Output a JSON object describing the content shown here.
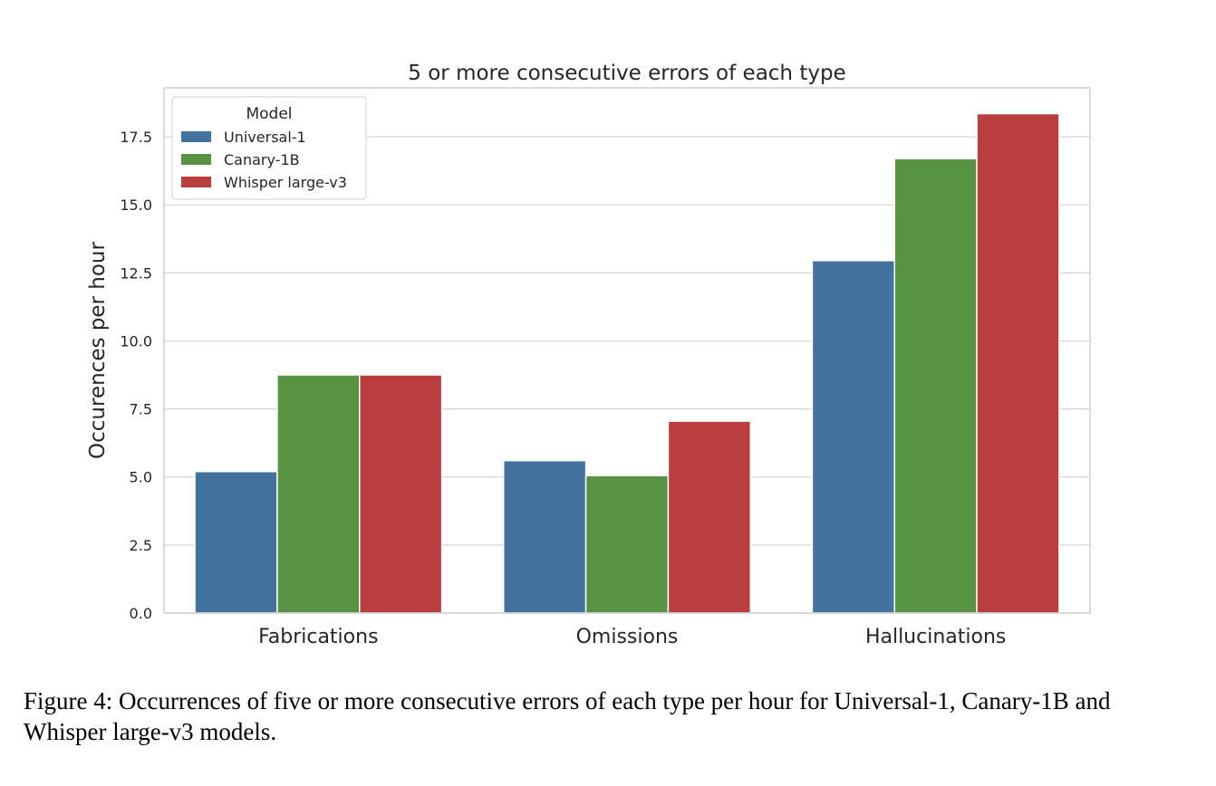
{
  "chart_data": {
    "type": "bar",
    "title": "5 or more consecutive errors of each type",
    "xlabel": "",
    "ylabel": "Occurences per hour",
    "categories": [
      "Fabrications",
      "Omissions",
      "Hallucinations"
    ],
    "ylim": [
      0,
      19.3
    ],
    "yticks": [
      "0.0",
      "2.5",
      "5.0",
      "7.5",
      "10.0",
      "12.5",
      "15.0",
      "17.5"
    ],
    "grid": true,
    "legend": {
      "title": "Model",
      "placement": "top-left"
    },
    "series": [
      {
        "name": "Universal-1",
        "color": "#44729e",
        "values": [
          5.2,
          5.6,
          12.95
        ]
      },
      {
        "name": "Canary-1B",
        "color": "#589343",
        "values": [
          8.75,
          5.05,
          16.7
        ]
      },
      {
        "name": "Whisper large-v3",
        "color": "#b93e3d",
        "values": [
          8.75,
          7.05,
          18.35
        ]
      }
    ]
  },
  "caption": "Figure 4: Occurrences of five or more consecutive errors of each type per hour for Universal-1, Canary-1B and Whisper large-v3 models."
}
